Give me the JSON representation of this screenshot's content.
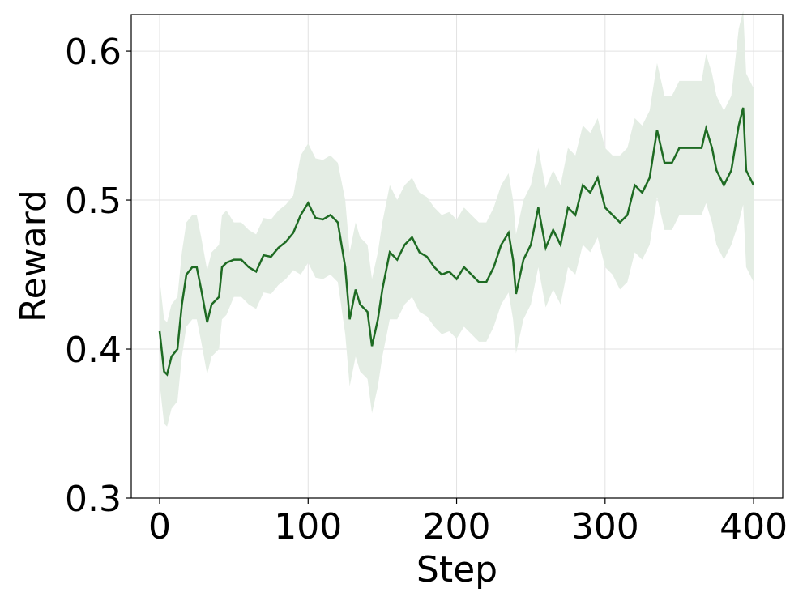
{
  "chart_data": {
    "type": "line",
    "xlabel": "Step",
    "ylabel": "Reward",
    "x": [
      0,
      3,
      5,
      8,
      12,
      15,
      18,
      22,
      25,
      28,
      32,
      35,
      40,
      42,
      45,
      50,
      55,
      60,
      65,
      70,
      75,
      80,
      85,
      90,
      95,
      100,
      105,
      110,
      115,
      120,
      125,
      128,
      132,
      135,
      140,
      143,
      147,
      150,
      155,
      160,
      165,
      170,
      175,
      180,
      185,
      190,
      195,
      200,
      205,
      210,
      215,
      220,
      225,
      230,
      235,
      238,
      240,
      245,
      250,
      255,
      260,
      265,
      270,
      275,
      280,
      285,
      290,
      295,
      300,
      305,
      310,
      315,
      320,
      325,
      330,
      335,
      340,
      345,
      350,
      355,
      360,
      365,
      368,
      372,
      375,
      380,
      385,
      390,
      393,
      395,
      400
    ],
    "series": [
      {
        "color": "#1e6b23",
        "band_color": "#e4ede4",
        "values": [
          0.412,
          0.385,
          0.383,
          0.395,
          0.4,
          0.43,
          0.45,
          0.455,
          0.455,
          0.44,
          0.418,
          0.43,
          0.435,
          0.455,
          0.458,
          0.46,
          0.46,
          0.455,
          0.452,
          0.463,
          0.462,
          0.468,
          0.472,
          0.478,
          0.49,
          0.498,
          0.488,
          0.487,
          0.49,
          0.485,
          0.455,
          0.42,
          0.44,
          0.43,
          0.425,
          0.402,
          0.42,
          0.44,
          0.465,
          0.46,
          0.47,
          0.475,
          0.465,
          0.462,
          0.455,
          0.45,
          0.452,
          0.447,
          0.455,
          0.45,
          0.445,
          0.445,
          0.455,
          0.47,
          0.478,
          0.46,
          0.437,
          0.46,
          0.47,
          0.495,
          0.468,
          0.48,
          0.47,
          0.495,
          0.49,
          0.51,
          0.505,
          0.515,
          0.495,
          0.49,
          0.485,
          0.49,
          0.51,
          0.505,
          0.515,
          0.547,
          0.525,
          0.525,
          0.535,
          0.535,
          0.535,
          0.535,
          0.548,
          0.535,
          0.52,
          0.51,
          0.52,
          0.55,
          0.562,
          0.52,
          0.51
        ],
        "error": [
          0.035,
          0.035,
          0.035,
          0.035,
          0.035,
          0.035,
          0.035,
          0.035,
          0.035,
          0.035,
          0.035,
          0.035,
          0.035,
          0.035,
          0.035,
          0.025,
          0.025,
          0.025,
          0.025,
          0.025,
          0.025,
          0.025,
          0.025,
          0.025,
          0.04,
          0.04,
          0.04,
          0.04,
          0.04,
          0.04,
          0.045,
          0.045,
          0.045,
          0.045,
          0.045,
          0.045,
          0.045,
          0.045,
          0.045,
          0.04,
          0.04,
          0.04,
          0.04,
          0.04,
          0.04,
          0.04,
          0.04,
          0.04,
          0.04,
          0.04,
          0.04,
          0.04,
          0.04,
          0.04,
          0.04,
          0.04,
          0.04,
          0.04,
          0.04,
          0.04,
          0.04,
          0.04,
          0.04,
          0.04,
          0.04,
          0.04,
          0.04,
          0.04,
          0.04,
          0.04,
          0.045,
          0.045,
          0.045,
          0.045,
          0.045,
          0.045,
          0.045,
          0.045,
          0.045,
          0.045,
          0.045,
          0.045,
          0.05,
          0.05,
          0.05,
          0.05,
          0.05,
          0.065,
          0.065,
          0.065,
          0.065
        ]
      }
    ],
    "xlim": [
      -19.1,
      419.6
    ],
    "ylim": [
      0.3,
      0.6245
    ],
    "xticks": [
      0,
      100,
      200,
      300,
      400
    ],
    "yticks": [
      0.3,
      0.4,
      0.5,
      0.6
    ],
    "grid": true
  }
}
